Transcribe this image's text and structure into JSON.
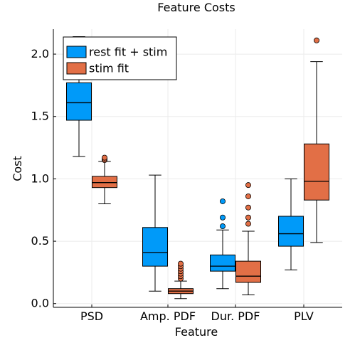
{
  "chart_data": {
    "type": "box",
    "title": "Feature Costs",
    "xlabel": "Feature",
    "ylabel": "Cost",
    "categories": [
      "PSD",
      "Amp. PDF",
      "Dur. PDF",
      "PLV"
    ],
    "ylim": [
      -0.03,
      2.2
    ],
    "yticks": [
      0.0,
      0.5,
      1.0,
      1.5,
      2.0
    ],
    "ytick_labels": [
      "0.0",
      "0.5",
      "1.0",
      "1.5",
      "2.0"
    ],
    "grid": true,
    "legend_position": "top-left",
    "series": [
      {
        "name": "rest fit + stim",
        "color": "#009af9",
        "boxes": [
          {
            "category": "PSD",
            "whisker_low": 1.18,
            "q1": 1.47,
            "median": 1.61,
            "q3": 1.77,
            "whisker_high": 2.14,
            "outliers": []
          },
          {
            "category": "Amp. PDF",
            "whisker_low": 0.1,
            "q1": 0.3,
            "median": 0.41,
            "q3": 0.61,
            "whisker_high": 1.03,
            "outliers": []
          },
          {
            "category": "Dur. PDF",
            "whisker_low": 0.12,
            "q1": 0.26,
            "median": 0.3,
            "q3": 0.39,
            "whisker_high": 0.59,
            "outliers": [
              0.62,
              0.69,
              0.82
            ]
          },
          {
            "category": "PLV",
            "whisker_low": 0.27,
            "q1": 0.46,
            "median": 0.56,
            "q3": 0.7,
            "whisker_high": 1.0,
            "outliers": []
          }
        ]
      },
      {
        "name": "stim fit",
        "color": "#e26f46",
        "boxes": [
          {
            "category": "PSD",
            "whisker_low": 0.8,
            "q1": 0.93,
            "median": 0.97,
            "q3": 1.02,
            "whisker_high": 1.14,
            "outliers": [
              1.15,
              1.16,
              1.17
            ]
          },
          {
            "category": "Amp. PDF",
            "whisker_low": 0.04,
            "q1": 0.08,
            "median": 0.1,
            "q3": 0.12,
            "whisker_high": 0.18,
            "outliers": [
              0.2,
              0.22,
              0.24,
              0.26,
              0.28,
              0.3,
              0.32
            ]
          },
          {
            "category": "Dur. PDF",
            "whisker_low": 0.07,
            "q1": 0.17,
            "median": 0.22,
            "q3": 0.34,
            "whisker_high": 0.58,
            "outliers": [
              0.64,
              0.69,
              0.77,
              0.86,
              0.95
            ]
          },
          {
            "category": "PLV",
            "whisker_low": 0.49,
            "q1": 0.83,
            "median": 0.98,
            "q3": 1.28,
            "whisker_high": 1.94,
            "outliers": [
              2.11
            ]
          }
        ]
      }
    ]
  }
}
